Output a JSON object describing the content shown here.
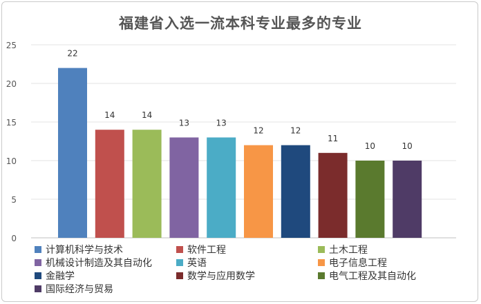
{
  "chart_data": {
    "type": "bar",
    "title": "福建省入选一流本科专业最多的专业",
    "xlabel": "",
    "ylabel": "",
    "ylim": [
      0,
      25
    ],
    "yticks": [
      0,
      5,
      10,
      15,
      20,
      25
    ],
    "grid": true,
    "legend_position": "bottom",
    "categories": [
      "计算机科学与技术",
      "软件工程",
      "土木工程",
      "机械设计制造及其自动化",
      "英语",
      "电子信息工程",
      "金融学",
      "数学与应用数学",
      "电气工程及其自动化",
      "国际经济与贸易"
    ],
    "values": [
      22,
      14,
      14,
      13,
      13,
      12,
      12,
      11,
      10,
      10
    ],
    "colors": [
      "#4f81bd",
      "#c0504d",
      "#9bbb59",
      "#8064a2",
      "#4bacc6",
      "#f79646",
      "#1f497d",
      "#7b2c2c",
      "#5a7a2e",
      "#4f3b66"
    ]
  }
}
